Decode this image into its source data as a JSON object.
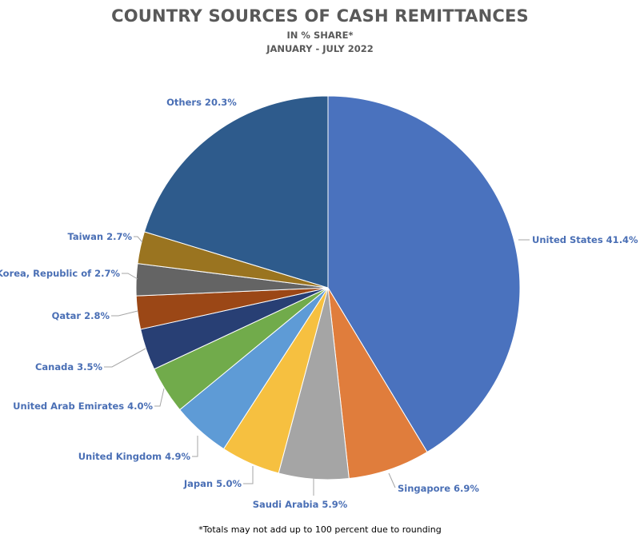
{
  "chart_data": {
    "type": "pie",
    "title": "COUNTRY SOURCES OF CASH REMITTANCES",
    "subtitle": [
      "IN % SHARE*",
      "JANUARY - JULY 2022"
    ],
    "start": "12 o'clock, clockwise",
    "slices": [
      {
        "name": "United States",
        "value": 41.4,
        "label": "United States 41.4%",
        "color": "#4a72be"
      },
      {
        "name": "Singapore",
        "value": 6.9,
        "label": "Singapore 6.9%",
        "color": "#e07d3c"
      },
      {
        "name": "Saudi Arabia",
        "value": 5.9,
        "label": "Saudi Arabia 5.9%",
        "color": "#a5a5a5"
      },
      {
        "name": "Japan",
        "value": 5.0,
        "label": "Japan 5.0%",
        "color": "#f6c040"
      },
      {
        "name": "United Kingdom",
        "value": 4.9,
        "label": "United Kingdom 4.9%",
        "color": "#5e9bd6"
      },
      {
        "name": "United Arab Emirates",
        "value": 4.0,
        "label": "United Arab Emirates 4.0%",
        "color": "#71ab4b"
      },
      {
        "name": "Canada",
        "value": 3.5,
        "label": "Canada 3.5%",
        "color": "#283f74"
      },
      {
        "name": "Qatar",
        "value": 2.8,
        "label": "Qatar 2.8%",
        "color": "#9b4716"
      },
      {
        "name": "Korea, Republic of",
        "value": 2.7,
        "label": "Korea, Republic of 2.7%",
        "color": "#646464"
      },
      {
        "name": "Taiwan",
        "value": 2.7,
        "label": "Taiwan 2.7%",
        "color": "#9a7420"
      },
      {
        "name": "Others",
        "value": 20.3,
        "label": "Others 20.3%",
        "color": "#2e5b8c"
      }
    ],
    "footnote": "*Totals may not add up to 100 percent due to rounding"
  }
}
